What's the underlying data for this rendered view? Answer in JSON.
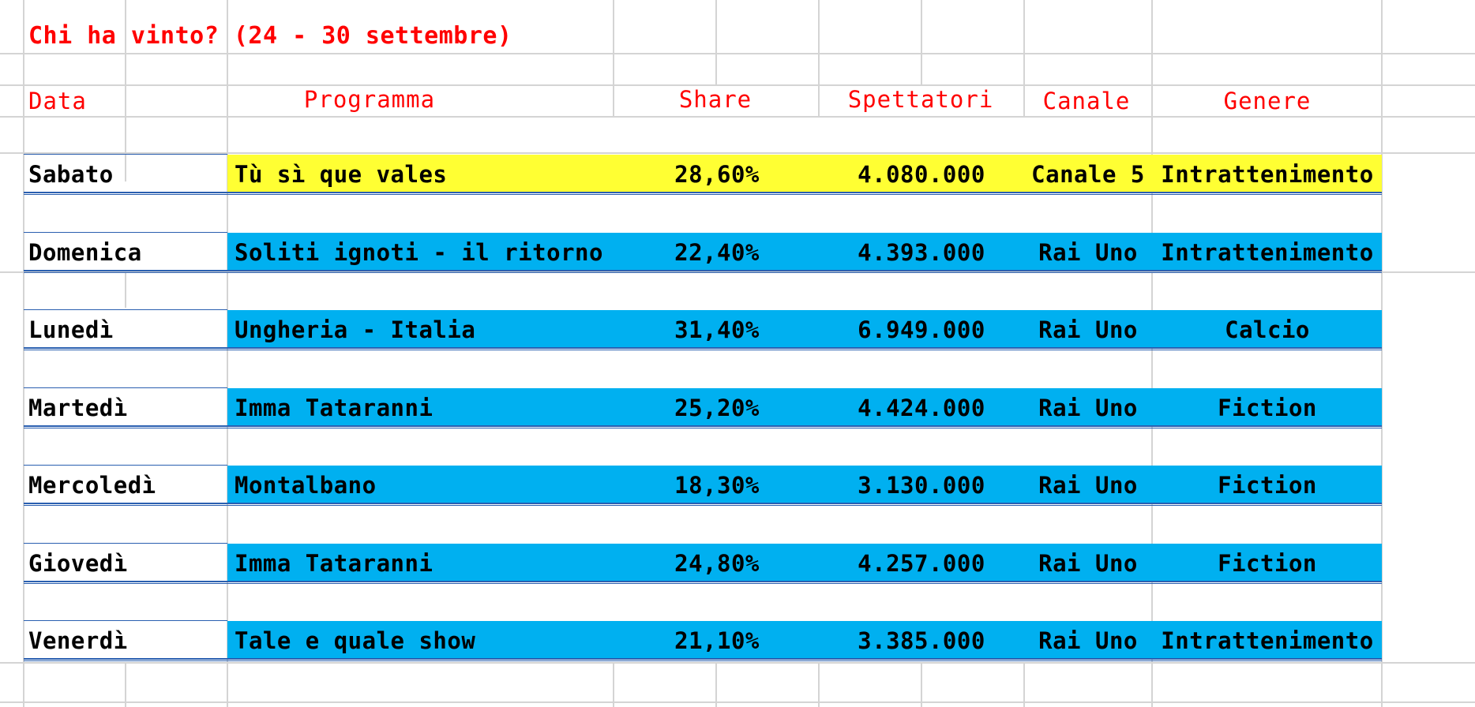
{
  "sheet": {
    "title": "Chi ha vinto? (24 - 30 settembre)",
    "headers": {
      "data": "Data",
      "programma": "Programma",
      "share": "Share",
      "spettatori": "Spettatori",
      "canale": "Canale",
      "genere": "Genere"
    },
    "rows": [
      {
        "day": "Sabato",
        "program": "Tù sì que vales",
        "share": "28,60%",
        "viewers": "4.080.000",
        "channel": "Canale 5",
        "genre": "Intrattenimento",
        "highlight": "#ffff33"
      },
      {
        "day": "Domenica",
        "program": "Soliti ignoti - il ritorno",
        "share": "22,40%",
        "viewers": "4.393.000",
        "channel": "Rai Uno",
        "genre": "Intrattenimento",
        "highlight": "#00b0f0"
      },
      {
        "day": "Lunedì",
        "program": "Ungheria - Italia",
        "share": "31,40%",
        "viewers": "6.949.000",
        "channel": "Rai Uno",
        "genre": "Calcio",
        "highlight": "#00b0f0"
      },
      {
        "day": "Martedì",
        "program": "Imma Tataranni",
        "share": "25,20%",
        "viewers": "4.424.000",
        "channel": "Rai Uno",
        "genre": "Fiction",
        "highlight": "#00b0f0"
      },
      {
        "day": "Mercoledì",
        "program": "Montalbano",
        "share": "18,30%",
        "viewers": "3.130.000",
        "channel": "Rai Uno",
        "genre": "Fiction",
        "highlight": "#00b0f0"
      },
      {
        "day": "Giovedì",
        "program": "Imma Tataranni",
        "share": "24,80%",
        "viewers": "4.257.000",
        "channel": "Rai Uno",
        "genre": "Fiction",
        "highlight": "#00b0f0"
      },
      {
        "day": "Venerdì",
        "program": "Tale e quale show",
        "share": "21,10%",
        "viewers": "3.385.000",
        "channel": "Rai Uno",
        "genre": "Intrattenimento",
        "highlight": "#00b0f0"
      }
    ]
  }
}
